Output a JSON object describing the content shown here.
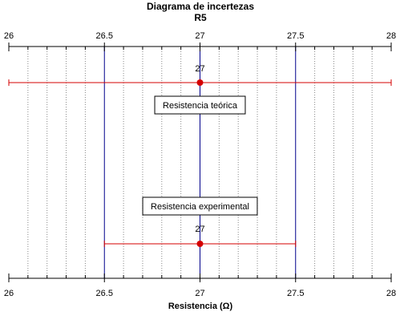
{
  "chart_data": {
    "type": "scatter",
    "title": "Diagrama de incertezas",
    "subtitle": "R5",
    "xlabel": "Resistencia (Ω)",
    "ylabel": "",
    "xlim": [
      26,
      28
    ],
    "x_ticks": [
      "26",
      "26.5",
      "27",
      "27.5",
      "28"
    ],
    "minor_tick_step": 0.1,
    "grid": "vertical dotted minor gridlines",
    "reference_lines": [
      26.5,
      27,
      27.5
    ],
    "series": [
      {
        "name": "Resistencia teórica",
        "x": 27,
        "x_low": 26,
        "x_high": 28,
        "value_label": "27",
        "color": "#d40000"
      },
      {
        "name": "Resistencia experimental",
        "x": 27,
        "x_low": 26.5,
        "x_high": 27.5,
        "value_label": "27",
        "color": "#d40000"
      }
    ],
    "reference_line_color": "#00008b"
  }
}
